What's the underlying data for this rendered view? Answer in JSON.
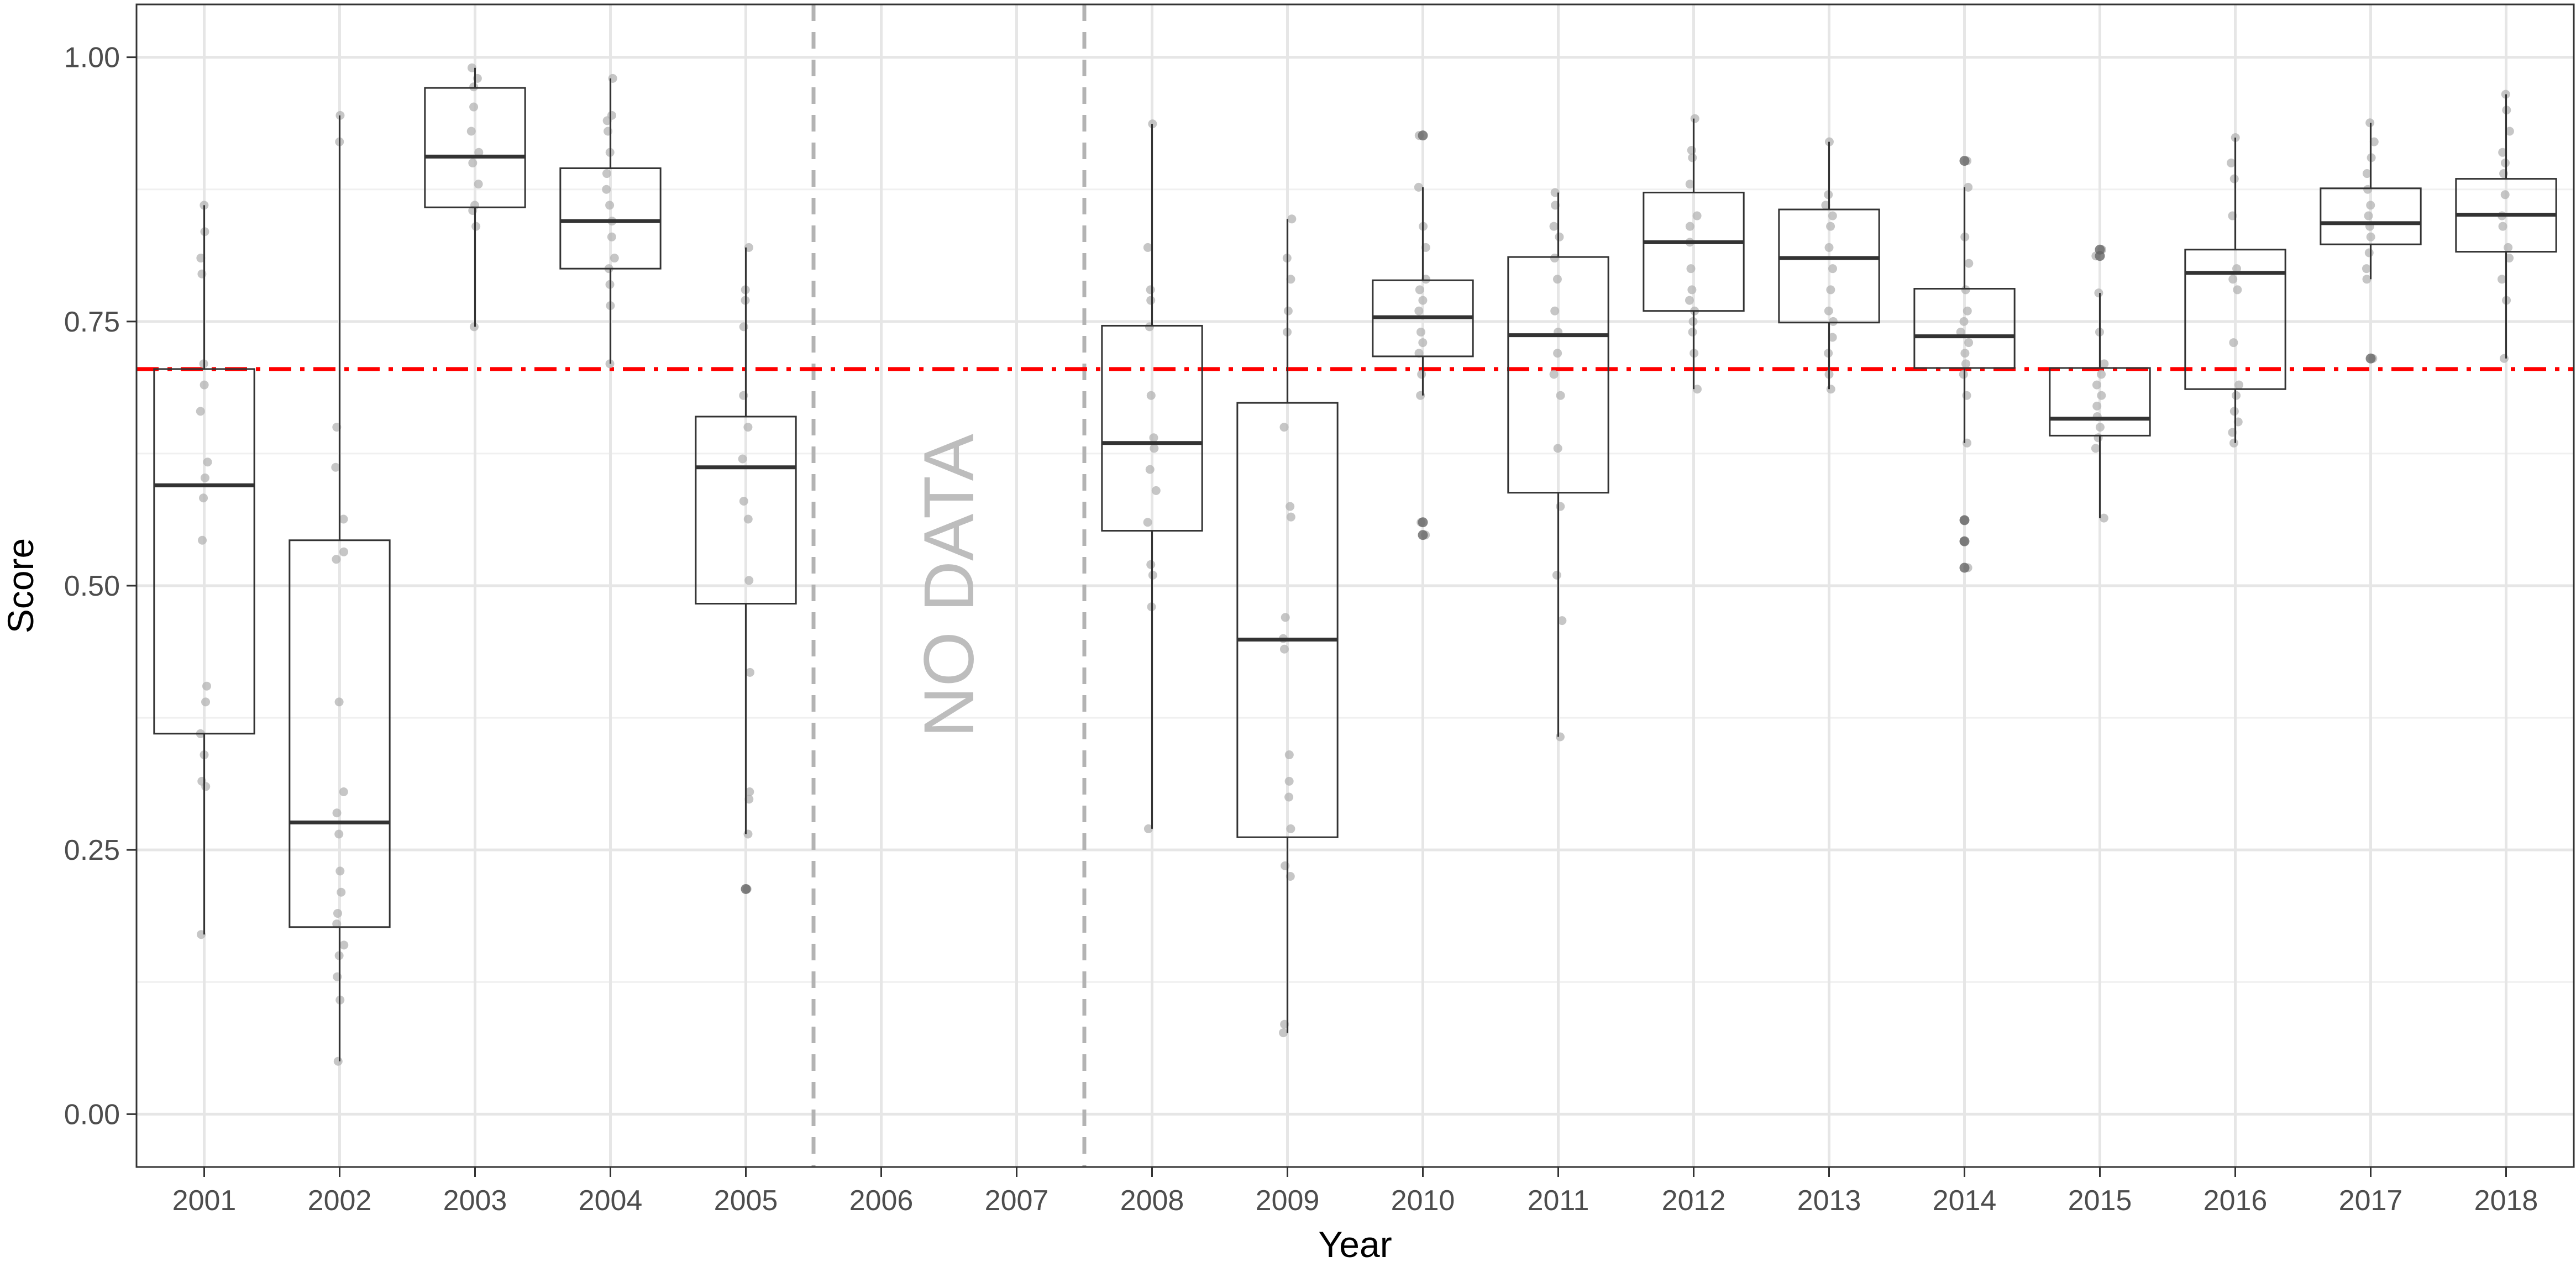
{
  "chart_data": {
    "type": "boxplot",
    "xlabel": "Year",
    "ylabel": "Score",
    "categories": [
      "2001",
      "2002",
      "2003",
      "2004",
      "2005",
      "2006",
      "2007",
      "2008",
      "2009",
      "2010",
      "2011",
      "2012",
      "2013",
      "2014",
      "2015",
      "2016",
      "2017",
      "2018"
    ],
    "ylim": [
      -0.05,
      1.05
    ],
    "yticks": [
      0.0,
      0.25,
      0.5,
      0.75,
      1.0
    ],
    "ytick_labels": [
      "0.00",
      "0.25",
      "0.50",
      "0.75",
      "1.00"
    ],
    "grid": true,
    "reference_line": {
      "value": 0.705,
      "color": "#ff0000",
      "style": "dash-dot"
    },
    "gap_markers": {
      "between": [
        [
          "2005",
          "2006"
        ],
        [
          "2007",
          "2008"
        ]
      ],
      "color": "#b3b3b3",
      "style": "dashed"
    },
    "annotation": {
      "text": "NO DATA",
      "category": "2006.5",
      "y": 0.5,
      "orientation": "vertical"
    },
    "boxes": [
      {
        "year": "2001",
        "min": 0.17,
        "q1": 0.36,
        "median": 0.595,
        "q3": 0.705,
        "max": 0.86,
        "outliers": []
      },
      {
        "year": "2002",
        "min": 0.05,
        "q1": 0.177,
        "median": 0.276,
        "q3": 0.543,
        "max": 0.945,
        "outliers": []
      },
      {
        "year": "2003",
        "min": 0.745,
        "q1": 0.858,
        "median": 0.906,
        "q3": 0.971,
        "max": 0.99,
        "outliers": []
      },
      {
        "year": "2004",
        "min": 0.71,
        "q1": 0.8,
        "median": 0.845,
        "q3": 0.895,
        "max": 0.98,
        "outliers": []
      },
      {
        "year": "2005",
        "min": 0.265,
        "q1": 0.483,
        "median": 0.612,
        "q3": 0.66,
        "max": 0.82,
        "outliers": [
          0.213
        ]
      },
      {
        "year": "2008",
        "min": 0.27,
        "q1": 0.552,
        "median": 0.635,
        "q3": 0.746,
        "max": 0.937,
        "outliers": []
      },
      {
        "year": "2009",
        "min": 0.077,
        "q1": 0.262,
        "median": 0.449,
        "q3": 0.673,
        "max": 0.847,
        "outliers": []
      },
      {
        "year": "2010",
        "min": 0.68,
        "q1": 0.717,
        "median": 0.754,
        "q3": 0.789,
        "max": 0.877,
        "outliers": [
          0.926,
          0.56,
          0.548
        ]
      },
      {
        "year": "2011",
        "min": 0.357,
        "q1": 0.588,
        "median": 0.737,
        "q3": 0.811,
        "max": 0.872,
        "outliers": []
      },
      {
        "year": "2012",
        "min": 0.686,
        "q1": 0.76,
        "median": 0.825,
        "q3": 0.872,
        "max": 0.942,
        "outliers": []
      },
      {
        "year": "2013",
        "min": 0.686,
        "q1": 0.749,
        "median": 0.81,
        "q3": 0.856,
        "max": 0.92,
        "outliers": []
      },
      {
        "year": "2014",
        "min": 0.635,
        "q1": 0.706,
        "median": 0.736,
        "q3": 0.781,
        "max": 0.877,
        "outliers": [
          0.902,
          0.562,
          0.542,
          0.517
        ]
      },
      {
        "year": "2015",
        "min": 0.564,
        "q1": 0.642,
        "median": 0.658,
        "q3": 0.706,
        "max": 0.777,
        "outliers": [
          0.818,
          0.812
        ]
      },
      {
        "year": "2016",
        "min": 0.635,
        "q1": 0.686,
        "median": 0.796,
        "q3": 0.818,
        "max": 0.924,
        "outliers": []
      },
      {
        "year": "2017",
        "min": 0.79,
        "q1": 0.823,
        "median": 0.843,
        "q3": 0.876,
        "max": 0.938,
        "outliers": [
          0.715
        ]
      },
      {
        "year": "2018",
        "min": 0.715,
        "q1": 0.816,
        "median": 0.851,
        "q3": 0.885,
        "max": 0.965,
        "outliers": []
      }
    ],
    "jitter_points": {
      "2001": [
        0.86,
        0.835,
        0.81,
        0.795,
        0.71,
        0.69,
        0.665,
        0.617,
        0.602,
        0.583,
        0.543,
        0.405,
        0.39,
        0.36,
        0.34,
        0.315,
        0.31,
        0.17
      ],
      "2002": [
        0.945,
        0.92,
        0.65,
        0.612,
        0.563,
        0.532,
        0.525,
        0.39,
        0.305,
        0.285,
        0.265,
        0.23,
        0.21,
        0.19,
        0.18,
        0.16,
        0.15,
        0.13,
        0.108,
        0.05
      ],
      "2003": [
        0.99,
        0.98,
        0.972,
        0.953,
        0.93,
        0.91,
        0.9,
        0.88,
        0.86,
        0.855,
        0.84,
        0.745
      ],
      "2004": [
        0.98,
        0.945,
        0.94,
        0.93,
        0.91,
        0.89,
        0.875,
        0.86,
        0.845,
        0.83,
        0.81,
        0.8,
        0.785,
        0.765,
        0.71
      ],
      "2005": [
        0.82,
        0.78,
        0.77,
        0.745,
        0.68,
        0.65,
        0.62,
        0.58,
        0.563,
        0.505,
        0.418,
        0.305,
        0.298,
        0.265,
        0.213
      ],
      "2008": [
        0.937,
        0.82,
        0.78,
        0.77,
        0.745,
        0.68,
        0.64,
        0.63,
        0.61,
        0.59,
        0.56,
        0.52,
        0.51,
        0.48,
        0.27
      ],
      "2009": [
        0.847,
        0.81,
        0.79,
        0.76,
        0.74,
        0.65,
        0.575,
        0.565,
        0.47,
        0.45,
        0.44,
        0.34,
        0.315,
        0.3,
        0.27,
        0.235,
        0.225,
        0.085,
        0.077
      ],
      "2010": [
        0.926,
        0.877,
        0.84,
        0.82,
        0.79,
        0.78,
        0.77,
        0.76,
        0.74,
        0.73,
        0.72,
        0.7,
        0.68,
        0.56,
        0.548
      ],
      "2011": [
        0.872,
        0.86,
        0.84,
        0.83,
        0.81,
        0.79,
        0.76,
        0.74,
        0.72,
        0.7,
        0.68,
        0.63,
        0.575,
        0.51,
        0.467,
        0.357
      ],
      "2012": [
        0.942,
        0.912,
        0.905,
        0.88,
        0.85,
        0.84,
        0.825,
        0.8,
        0.78,
        0.77,
        0.76,
        0.75,
        0.74,
        0.72,
        0.686
      ],
      "2013": [
        0.92,
        0.87,
        0.86,
        0.85,
        0.84,
        0.82,
        0.8,
        0.78,
        0.76,
        0.75,
        0.735,
        0.72,
        0.7,
        0.686
      ],
      "2014": [
        0.902,
        0.877,
        0.83,
        0.805,
        0.78,
        0.76,
        0.75,
        0.74,
        0.73,
        0.72,
        0.71,
        0.7,
        0.68,
        0.635,
        0.562,
        0.542,
        0.517
      ],
      "2015": [
        0.818,
        0.812,
        0.777,
        0.74,
        0.71,
        0.7,
        0.69,
        0.68,
        0.67,
        0.66,
        0.65,
        0.64,
        0.63,
        0.564
      ],
      "2016": [
        0.924,
        0.9,
        0.885,
        0.85,
        0.8,
        0.79,
        0.78,
        0.73,
        0.69,
        0.68,
        0.665,
        0.655,
        0.645,
        0.635
      ],
      "2017": [
        0.938,
        0.92,
        0.905,
        0.89,
        0.875,
        0.86,
        0.85,
        0.84,
        0.83,
        0.815,
        0.8,
        0.79,
        0.715
      ],
      "2018": [
        0.965,
        0.95,
        0.93,
        0.91,
        0.9,
        0.89,
        0.87,
        0.85,
        0.84,
        0.82,
        0.81,
        0.79,
        0.77,
        0.715
      ]
    }
  }
}
